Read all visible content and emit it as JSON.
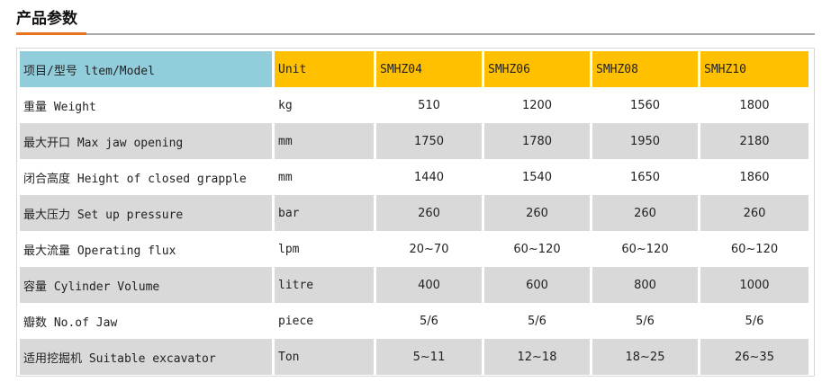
{
  "title": "产品参数",
  "colors": {
    "accent": "#e8731f",
    "header_first": "#92cddc",
    "header": "#ffc000",
    "row_alt": "#d9d9d9"
  },
  "table": {
    "headers": [
      "项目/型号 ltem/Model",
      "Unit",
      "SMHZ04",
      "SMHZ06",
      "SMHZ08",
      "SMHZ10"
    ],
    "rows": [
      {
        "item": "重量 Weight",
        "unit": "kg",
        "values": [
          "510",
          "1200",
          "1560",
          "1800"
        ]
      },
      {
        "item": "最大开口 Max jaw opening",
        "unit": "mm",
        "values": [
          "1750",
          "1780",
          "1950",
          "2180"
        ]
      },
      {
        "item": "闭合高度 Height of closed grapple",
        "unit": "mm",
        "values": [
          "1440",
          "1540",
          "1650",
          "1860"
        ]
      },
      {
        "item": "最大压力 Set up pressure",
        "unit": "bar",
        "values": [
          "260",
          "260",
          "260",
          "260"
        ]
      },
      {
        "item": "最大流量 Operating flux",
        "unit": "lpm",
        "values": [
          "20~70",
          "60~120",
          "60~120",
          "60~120"
        ]
      },
      {
        "item": "容量 Cylinder Volume",
        "unit": "litre",
        "values": [
          "400",
          "600",
          "800",
          "1000"
        ]
      },
      {
        "item": "瓣数 No.of Jaw",
        "unit": "piece",
        "values": [
          "5/6",
          "5/6",
          "5/6",
          "5/6"
        ]
      },
      {
        "item": "适用挖掘机 Suitable excavator",
        "unit": "Ton",
        "values": [
          "5~11",
          "12~18",
          "18~25",
          "26~35"
        ]
      }
    ]
  }
}
